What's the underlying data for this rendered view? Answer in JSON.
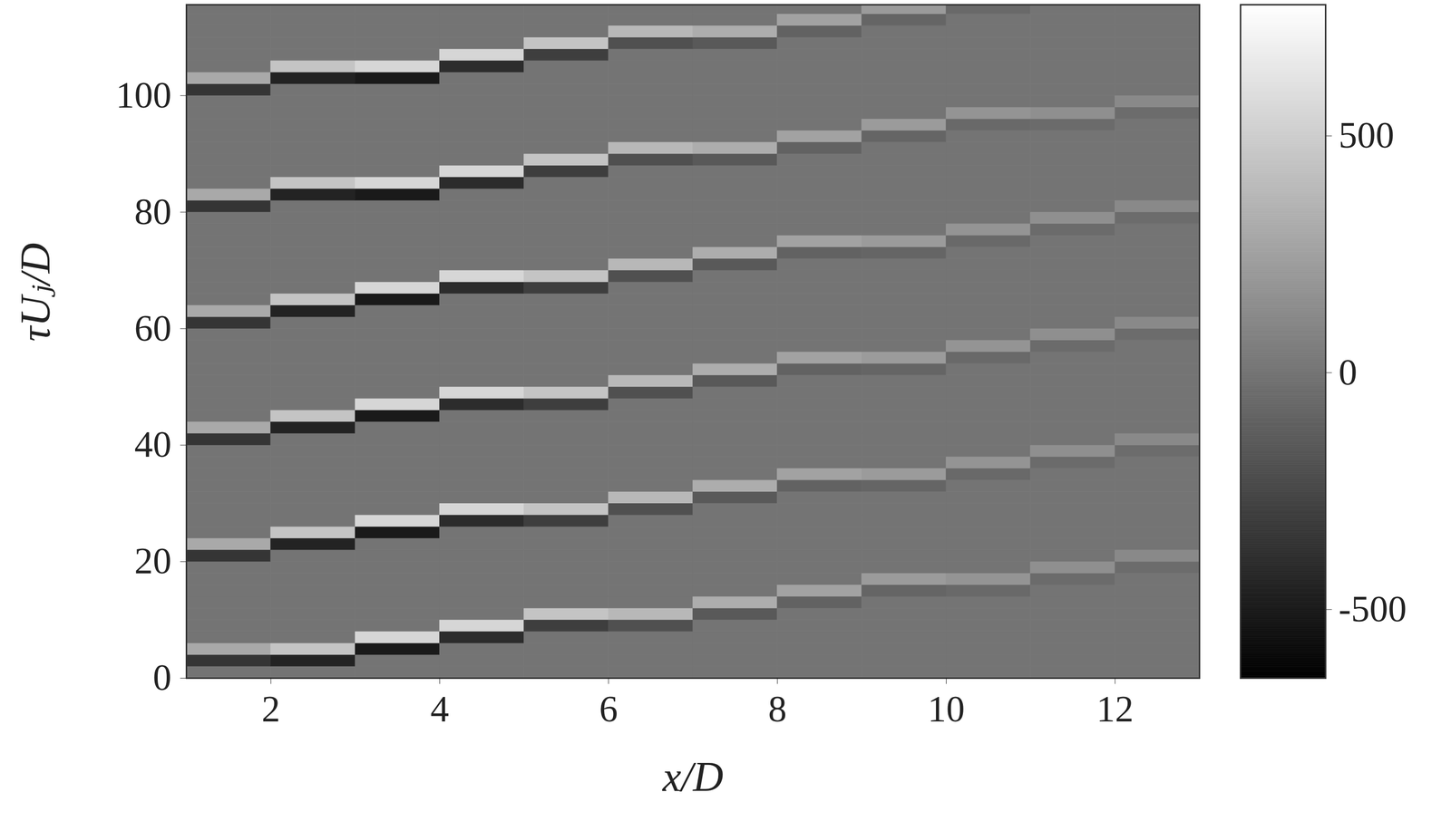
{
  "chart_data": {
    "type": "heatmap",
    "x_label": "x/D",
    "y_label": "τUⱼ/D",
    "xlim": [
      1,
      13
    ],
    "ylim": [
      0,
      115.6
    ],
    "xticks": [
      2,
      4,
      6,
      8,
      10,
      12
    ],
    "yticks": [
      0,
      20,
      40,
      60,
      80,
      100
    ],
    "x_bins": [
      1,
      2,
      3,
      4,
      5,
      6,
      7,
      8,
      9,
      10,
      11,
      12,
      13
    ],
    "y_bins": [
      0,
      2,
      4,
      6,
      8,
      10,
      12,
      14,
      16,
      18,
      20,
      22,
      24,
      26,
      28,
      30,
      32,
      34,
      36,
      38,
      40,
      42,
      44,
      46,
      48,
      50,
      52,
      54,
      56,
      58,
      60,
      62,
      64,
      66,
      68,
      70,
      72,
      74,
      76,
      78,
      80,
      82,
      84,
      86,
      88,
      90,
      92,
      94,
      96,
      98,
      100,
      102,
      104,
      106,
      108,
      110,
      112,
      114,
      116
    ],
    "z": [
      [
        0,
        0,
        0,
        0,
        0,
        0,
        0,
        0,
        0,
        0,
        0,
        0
      ],
      [
        -350,
        -450,
        0,
        0,
        0,
        0,
        0,
        0,
        0,
        0,
        0,
        0
      ],
      [
        300,
        450,
        -500,
        0,
        0,
        0,
        0,
        0,
        0,
        0,
        0,
        0
      ],
      [
        0,
        0,
        550,
        -400,
        0,
        0,
        0,
        0,
        0,
        0,
        0,
        0
      ],
      [
        0,
        0,
        0,
        550,
        -300,
        -200,
        0,
        0,
        0,
        0,
        0,
        0
      ],
      [
        0,
        0,
        0,
        0,
        450,
        380,
        -150,
        0,
        0,
        0,
        0,
        0
      ],
      [
        0,
        0,
        0,
        0,
        0,
        0,
        320,
        -100,
        0,
        0,
        0,
        0
      ],
      [
        0,
        0,
        0,
        0,
        0,
        0,
        0,
        260,
        -80,
        -60,
        0,
        0
      ],
      [
        0,
        0,
        0,
        0,
        0,
        0,
        0,
        0,
        220,
        180,
        -50,
        0
      ],
      [
        0,
        0,
        0,
        0,
        0,
        0,
        0,
        0,
        0,
        0,
        150,
        -40
      ],
      [
        -350,
        0,
        0,
        0,
        0,
        0,
        0,
        0,
        0,
        0,
        0,
        120
      ],
      [
        300,
        -450,
        0,
        0,
        0,
        0,
        0,
        0,
        0,
        0,
        0,
        0
      ],
      [
        0,
        450,
        -500,
        0,
        0,
        0,
        0,
        0,
        0,
        0,
        0,
        0
      ],
      [
        0,
        0,
        550,
        -400,
        -300,
        0,
        0,
        0,
        0,
        0,
        0,
        0
      ],
      [
        0,
        0,
        0,
        550,
        450,
        -200,
        0,
        0,
        0,
        0,
        0,
        0
      ],
      [
        0,
        0,
        0,
        0,
        0,
        380,
        -150,
        0,
        0,
        0,
        0,
        0
      ],
      [
        0,
        0,
        0,
        0,
        0,
        0,
        320,
        -100,
        -80,
        0,
        0,
        0
      ],
      [
        0,
        0,
        0,
        0,
        0,
        0,
        0,
        260,
        220,
        -60,
        0,
        0
      ],
      [
        0,
        0,
        0,
        0,
        0,
        0,
        0,
        0,
        0,
        180,
        -50,
        0
      ],
      [
        0,
        0,
        0,
        0,
        0,
        0,
        0,
        0,
        0,
        0,
        150,
        -40
      ],
      [
        -350,
        0,
        0,
        0,
        0,
        0,
        0,
        0,
        0,
        0,
        0,
        120
      ],
      [
        300,
        -450,
        0,
        0,
        0,
        0,
        0,
        0,
        0,
        0,
        0,
        0
      ],
      [
        0,
        450,
        -500,
        0,
        0,
        0,
        0,
        0,
        0,
        0,
        0,
        0
      ],
      [
        0,
        0,
        550,
        -400,
        -300,
        0,
        0,
        0,
        0,
        0,
        0,
        0
      ],
      [
        0,
        0,
        0,
        550,
        450,
        -200,
        0,
        0,
        0,
        0,
        0,
        0
      ],
      [
        0,
        0,
        0,
        0,
        0,
        380,
        -150,
        0,
        0,
        0,
        0,
        0
      ],
      [
        0,
        0,
        0,
        0,
        0,
        0,
        320,
        -100,
        -80,
        0,
        0,
        0
      ],
      [
        0,
        0,
        0,
        0,
        0,
        0,
        0,
        260,
        220,
        -60,
        0,
        0
      ],
      [
        0,
        0,
        0,
        0,
        0,
        0,
        0,
        0,
        0,
        180,
        -50,
        0
      ],
      [
        0,
        0,
        0,
        0,
        0,
        0,
        0,
        0,
        0,
        0,
        150,
        -40
      ],
      [
        -350,
        0,
        0,
        0,
        0,
        0,
        0,
        0,
        0,
        0,
        0,
        120
      ],
      [
        300,
        -450,
        0,
        0,
        0,
        0,
        0,
        0,
        0,
        0,
        0,
        0
      ],
      [
        0,
        450,
        -500,
        0,
        0,
        0,
        0,
        0,
        0,
        0,
        0,
        0
      ],
      [
        0,
        0,
        550,
        -400,
        -300,
        0,
        0,
        0,
        0,
        0,
        0,
        0
      ],
      [
        0,
        0,
        0,
        550,
        450,
        -200,
        0,
        0,
        0,
        0,
        0,
        0
      ],
      [
        0,
        0,
        0,
        0,
        0,
        380,
        -150,
        0,
        0,
        0,
        0,
        0
      ],
      [
        0,
        0,
        0,
        0,
        0,
        0,
        320,
        -100,
        -80,
        0,
        0,
        0
      ],
      [
        0,
        0,
        0,
        0,
        0,
        0,
        0,
        260,
        220,
        -60,
        0,
        0
      ],
      [
        0,
        0,
        0,
        0,
        0,
        0,
        0,
        0,
        0,
        180,
        -50,
        0
      ],
      [
        0,
        0,
        0,
        0,
        0,
        0,
        0,
        0,
        0,
        0,
        150,
        -40
      ],
      [
        -350,
        0,
        0,
        0,
        0,
        0,
        0,
        0,
        0,
        0,
        0,
        120
      ],
      [
        300,
        -450,
        -500,
        0,
        0,
        0,
        0,
        0,
        0,
        0,
        0,
        0
      ],
      [
        0,
        450,
        550,
        -400,
        0,
        0,
        0,
        0,
        0,
        0,
        0,
        0
      ],
      [
        0,
        0,
        0,
        550,
        -300,
        0,
        0,
        0,
        0,
        0,
        0,
        0
      ],
      [
        0,
        0,
        0,
        0,
        450,
        -200,
        -150,
        0,
        0,
        0,
        0,
        0
      ],
      [
        0,
        0,
        0,
        0,
        0,
        380,
        320,
        -100,
        0,
        0,
        0,
        0
      ],
      [
        0,
        0,
        0,
        0,
        0,
        0,
        0,
        260,
        -80,
        0,
        0,
        0
      ],
      [
        0,
        0,
        0,
        0,
        0,
        0,
        0,
        0,
        220,
        -60,
        -50,
        0
      ],
      [
        0,
        0,
        0,
        0,
        0,
        0,
        0,
        0,
        0,
        180,
        150,
        -40
      ],
      [
        0,
        0,
        0,
        0,
        0,
        0,
        0,
        0,
        0,
        0,
        0,
        120
      ],
      [
        -350,
        0,
        0,
        0,
        0,
        0,
        0,
        0,
        0,
        0,
        0,
        0
      ],
      [
        300,
        -450,
        -500,
        0,
        0,
        0,
        0,
        0,
        0,
        0,
        0,
        0
      ],
      [
        0,
        450,
        550,
        -400,
        0,
        0,
        0,
        0,
        0,
        0,
        0,
        0
      ],
      [
        0,
        0,
        0,
        550,
        -300,
        0,
        0,
        0,
        0,
        0,
        0,
        0
      ],
      [
        0,
        0,
        0,
        0,
        450,
        -200,
        -150,
        0,
        0,
        0,
        0,
        0
      ],
      [
        0,
        0,
        0,
        0,
        0,
        380,
        320,
        -100,
        0,
        0,
        0,
        0
      ],
      [
        0,
        0,
        0,
        0,
        0,
        0,
        0,
        260,
        -80,
        0,
        0,
        0
      ],
      [
        0,
        0,
        0,
        0,
        0,
        0,
        0,
        0,
        220,
        -60,
        0,
        0
      ]
    ],
    "colorbar": {
      "range": [
        -645,
        777
      ],
      "ticks": [
        -500,
        0,
        500
      ]
    }
  }
}
